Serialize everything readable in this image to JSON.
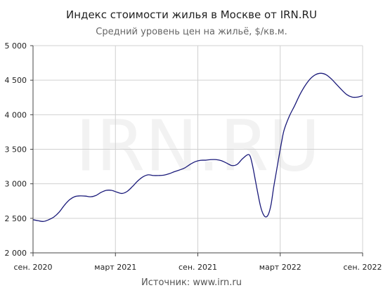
{
  "chart_data": {
    "type": "line",
    "title": "Индекс стоимости жилья в Москве от IRN.RU",
    "subtitle": "Средний уровень цен на жильё, $/кв.м.",
    "source": "Источник: www.irn.ru",
    "watermark": "IRN.RU",
    "ylim": [
      2000,
      5000
    ],
    "yticks": [
      "2 000",
      "2 500",
      "3 000",
      "3 500",
      "4 000",
      "4 500",
      "5 000"
    ],
    "xticks": [
      "сен. 2020",
      "март 2021",
      "сен. 2021",
      "март 2022",
      "сен. 2022"
    ],
    "grid": true,
    "series": [
      {
        "color": "#1a1a7a",
        "values": [
          [
            0,
            2480
          ],
          [
            2,
            2465
          ],
          [
            4,
            2455
          ],
          [
            6,
            2480
          ],
          [
            8,
            2520
          ],
          [
            10,
            2590
          ],
          [
            12,
            2690
          ],
          [
            14,
            2770
          ],
          [
            16,
            2815
          ],
          [
            18,
            2825
          ],
          [
            20,
            2822
          ],
          [
            22,
            2812
          ],
          [
            24,
            2830
          ],
          [
            26,
            2875
          ],
          [
            28,
            2905
          ],
          [
            30,
            2905
          ],
          [
            32,
            2880
          ],
          [
            34,
            2860
          ],
          [
            36,
            2890
          ],
          [
            38,
            2960
          ],
          [
            40,
            3040
          ],
          [
            42,
            3100
          ],
          [
            44,
            3130
          ],
          [
            46,
            3120
          ],
          [
            48,
            3120
          ],
          [
            50,
            3125
          ],
          [
            52,
            3145
          ],
          [
            54,
            3175
          ],
          [
            56,
            3200
          ],
          [
            58,
            3230
          ],
          [
            60,
            3280
          ],
          [
            62,
            3320
          ],
          [
            64,
            3340
          ],
          [
            66,
            3342
          ],
          [
            68,
            3350
          ],
          [
            70,
            3350
          ],
          [
            72,
            3335
          ],
          [
            74,
            3300
          ],
          [
            76,
            3265
          ],
          [
            78,
            3280
          ],
          [
            80,
            3360
          ],
          [
            82,
            3420
          ],
          [
            83,
            3400
          ],
          [
            84,
            3250
          ],
          [
            85,
            3050
          ],
          [
            86,
            2850
          ],
          [
            87,
            2670
          ],
          [
            88,
            2560
          ],
          [
            89,
            2520
          ],
          [
            90,
            2560
          ],
          [
            91,
            2700
          ],
          [
            92,
            2950
          ],
          [
            93,
            3170
          ],
          [
            94,
            3390
          ],
          [
            95,
            3600
          ],
          [
            96,
            3780
          ],
          [
            98,
            3980
          ],
          [
            100,
            4130
          ],
          [
            102,
            4290
          ],
          [
            104,
            4420
          ],
          [
            106,
            4520
          ],
          [
            108,
            4580
          ],
          [
            110,
            4600
          ],
          [
            112,
            4580
          ],
          [
            114,
            4520
          ],
          [
            116,
            4440
          ],
          [
            118,
            4360
          ],
          [
            120,
            4290
          ],
          [
            122,
            4255
          ],
          [
            124,
            4255
          ],
          [
            126,
            4275
          ]
        ]
      }
    ]
  }
}
